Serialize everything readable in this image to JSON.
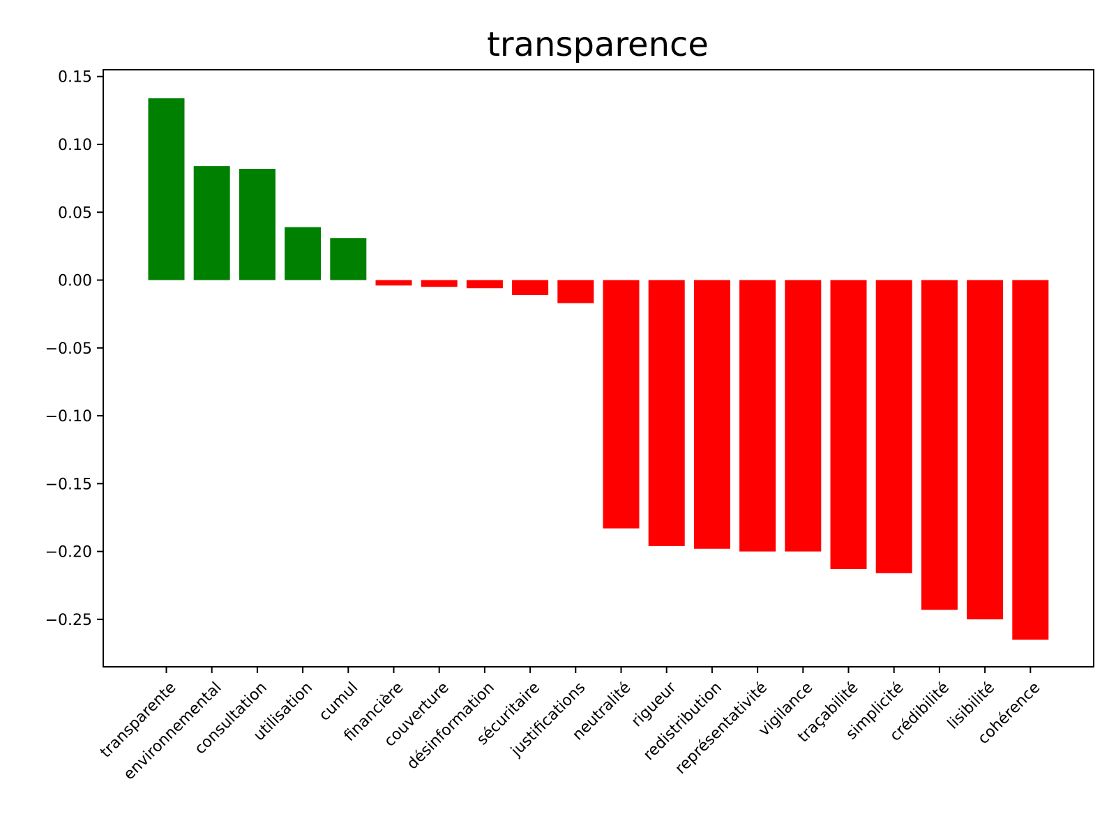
{
  "chart_data": {
    "type": "bar",
    "title": "transparence",
    "xlabel": "",
    "ylabel": "",
    "categories": [
      "transparente",
      "environnemental",
      "consultation",
      "utilisation",
      "cumul",
      "financière",
      "couverture",
      "désinformation",
      "sécuritaire",
      "justifications",
      "neutralité",
      "rigueur",
      "redistribution",
      "représentativité",
      "vigilance",
      "traçabilité",
      "simplicité",
      "crédibilité",
      "lisibilité",
      "cohérence"
    ],
    "values": [
      0.134,
      0.084,
      0.082,
      0.039,
      0.031,
      -0.004,
      -0.005,
      -0.006,
      -0.011,
      -0.017,
      -0.183,
      -0.196,
      -0.198,
      -0.2,
      -0.2,
      -0.213,
      -0.216,
      -0.243,
      -0.25,
      -0.265
    ],
    "ylim": [
      -0.285,
      0.155
    ],
    "yticks": [
      0.15,
      0.1,
      0.05,
      0.0,
      -0.05,
      -0.1,
      -0.15,
      -0.2,
      -0.25
    ],
    "ytick_labels": [
      "0.15",
      "0.10",
      "0.05",
      "0.00",
      "−0.05",
      "−0.10",
      "−0.15",
      "−0.20",
      "−0.25"
    ],
    "colors": {
      "positive": "#008000",
      "negative": "#ff0000"
    },
    "grid": false,
    "legend": null
  }
}
